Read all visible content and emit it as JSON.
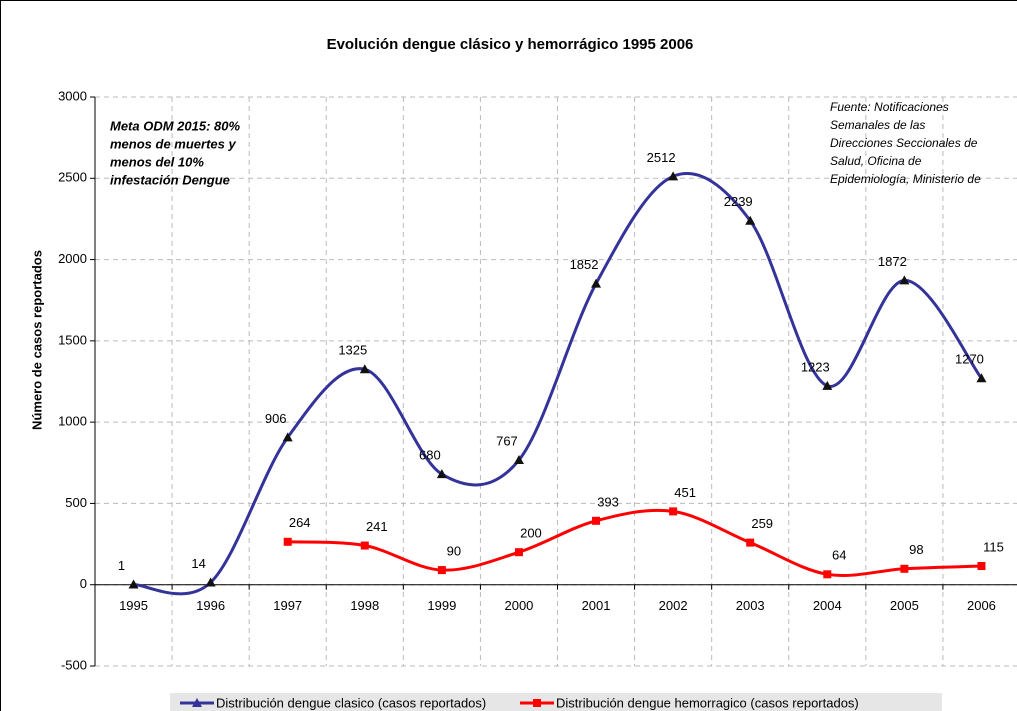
{
  "chart_data": {
    "type": "line",
    "title": "Evolución dengue clásico y hemorrágico 1995 2006",
    "y_label": "Número de casos reportados",
    "annotations": [
      [
        "Meta ODM 2015: 80%",
        "menos de muertes y",
        "menos del 10%",
        "infestación Dengue"
      ],
      [
        "Fuente: Notificaciones",
        "Semanales de las",
        "Direcciones Seccionales de",
        "Salud, Oficina de",
        "Epidemiología, Ministerio de"
      ]
    ],
    "categories": [
      "1995",
      "1996",
      "1997",
      "1998",
      "1999",
      "2000",
      "2001",
      "2002",
      "2003",
      "2004",
      "2005",
      "2006"
    ],
    "series": [
      {
        "name": "Distribución dengue clasico (casos reportados)",
        "color": "#333399",
        "marker": "triangle",
        "values": [
          1,
          14,
          906,
          1325,
          680,
          767,
          1852,
          2512,
          2239,
          1223,
          1872,
          1270
        ]
      },
      {
        "name": "Distribución dengue hemorragico (casos reportados)",
        "color": "#ff0000",
        "marker": "square",
        "values": [
          null,
          null,
          264,
          241,
          90,
          200,
          393,
          451,
          259,
          64,
          98,
          115
        ]
      }
    ],
    "ylim": [
      -500,
      3000
    ],
    "yticks": [
      -500,
      0,
      500,
      1000,
      1500,
      2000,
      2500,
      3000
    ],
    "grid": true,
    "smooth": true,
    "legend": "bottom"
  }
}
